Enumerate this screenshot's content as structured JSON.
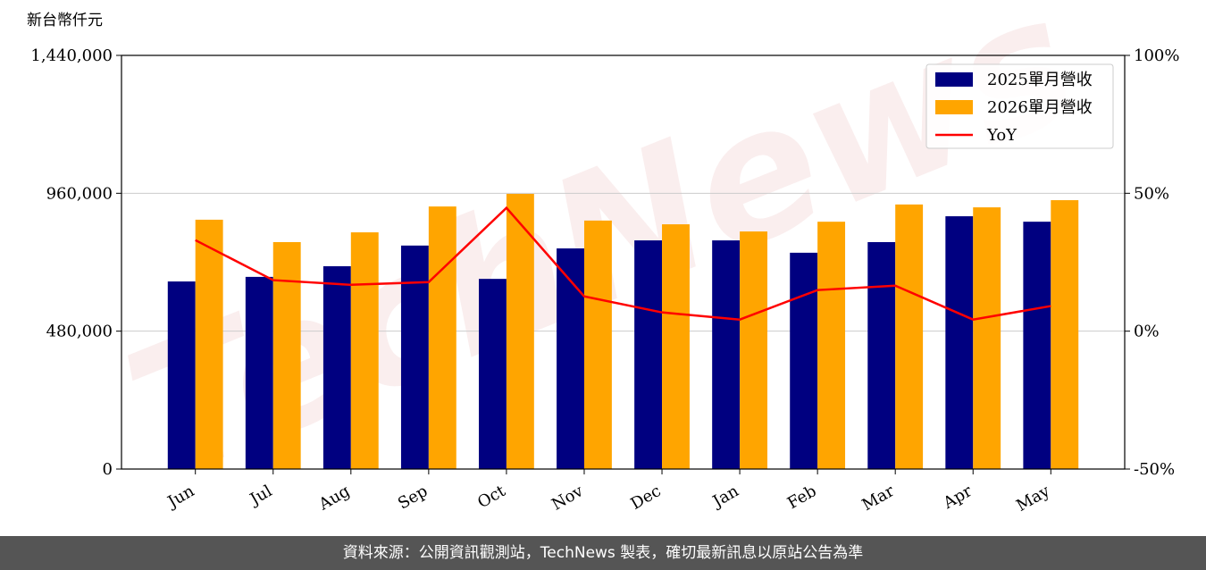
{
  "chart_data": {
    "type": "bar-line",
    "y_unit_label": "新台幣仟元",
    "watermark": "TechNews",
    "categories": [
      "Jun",
      "Jul",
      "Aug",
      "Sep",
      "Oct",
      "Nov",
      "Dec",
      "Jan",
      "Feb",
      "Mar",
      "Apr",
      "May"
    ],
    "series": [
      {
        "name": "2025單月營收",
        "type": "bar",
        "color": "#000080",
        "values": [
          653000,
          669000,
          706000,
          778000,
          662000,
          768000,
          796000,
          796000,
          753000,
          790000,
          880000,
          861000
        ]
      },
      {
        "name": "2026單月營收",
        "type": "bar",
        "color": "#ffa500",
        "values": [
          868000,
          790000,
          824000,
          914000,
          958000,
          865000,
          852000,
          827000,
          861000,
          921000,
          911000,
          936000
        ]
      },
      {
        "name": "YoY",
        "type": "line",
        "axis": "y2",
        "color": "#ff0000",
        "values": [
          33,
          18.5,
          16.8,
          17.8,
          44.7,
          12.6,
          6.8,
          4.2,
          14.9,
          16.5,
          4.2,
          9.1
        ]
      }
    ],
    "ylim": [
      0,
      1440000
    ],
    "yticks": [
      0,
      {
        "value": 480000,
        "label": "480,000"
      },
      {
        "value": 960000,
        "label": "960,000"
      },
      {
        "value": 1440000,
        "label": "1,440,000"
      }
    ],
    "y2lim": [
      -50,
      100
    ],
    "y2ticks": [
      {
        "value": -50,
        "label": "-50%"
      },
      {
        "value": 0,
        "label": "0%"
      },
      {
        "value": 50,
        "label": "50%"
      },
      {
        "value": 100,
        "label": "100%"
      }
    ],
    "grid": true,
    "legend": "upper right",
    "footer": "資料來源：公開資訊觀測站，TechNews 製表，確切最新訊息以原站公告為準"
  }
}
